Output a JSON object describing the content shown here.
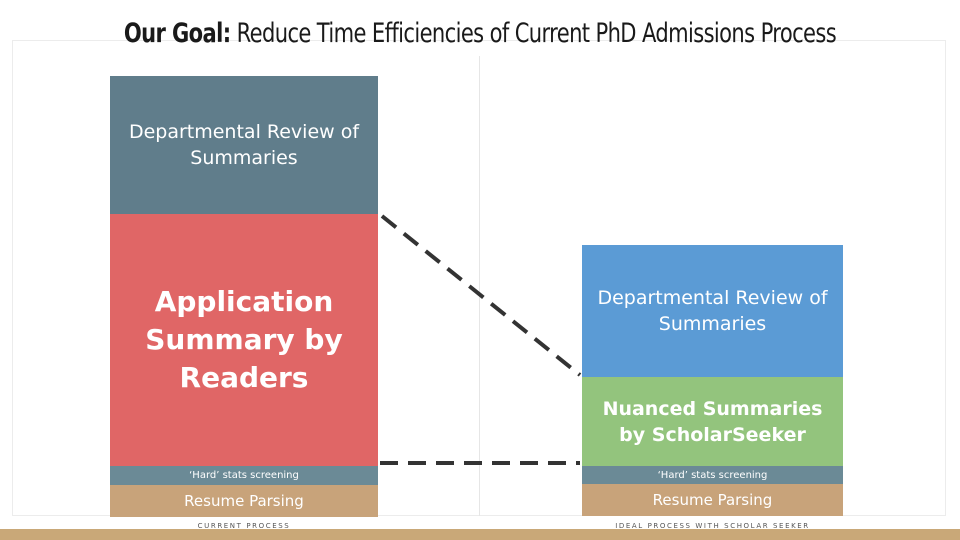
{
  "slide": {
    "title_bold": "Our Goal:",
    "title_rest": " Reduce Time Efficiencies of Current PhD Admissions Process"
  },
  "current": {
    "caption": "CURRENT PROCESS",
    "review": "Departmental Review of Summaries",
    "summary": "Application Summary by Readers",
    "screening": "‘Hard’ stats screening",
    "resume": "Resume Parsing"
  },
  "ideal": {
    "caption": "IDEAL PROCESS WITH SCHOLAR SEEKER",
    "review": "Departmental Review of Summaries",
    "summary": "Nuanced Summaries by ScholarSeeker",
    "screening": "‘Hard’ stats screening",
    "resume": "Resume Parsing"
  },
  "colors": {
    "review_current": "#607d8b",
    "summary_current": "#e06666",
    "screening": "#6b8a96",
    "resume": "#c8a37a",
    "review_ideal": "#5b9bd5",
    "summary_ideal": "#93c47d",
    "bottom_bar": "#c9a878"
  }
}
